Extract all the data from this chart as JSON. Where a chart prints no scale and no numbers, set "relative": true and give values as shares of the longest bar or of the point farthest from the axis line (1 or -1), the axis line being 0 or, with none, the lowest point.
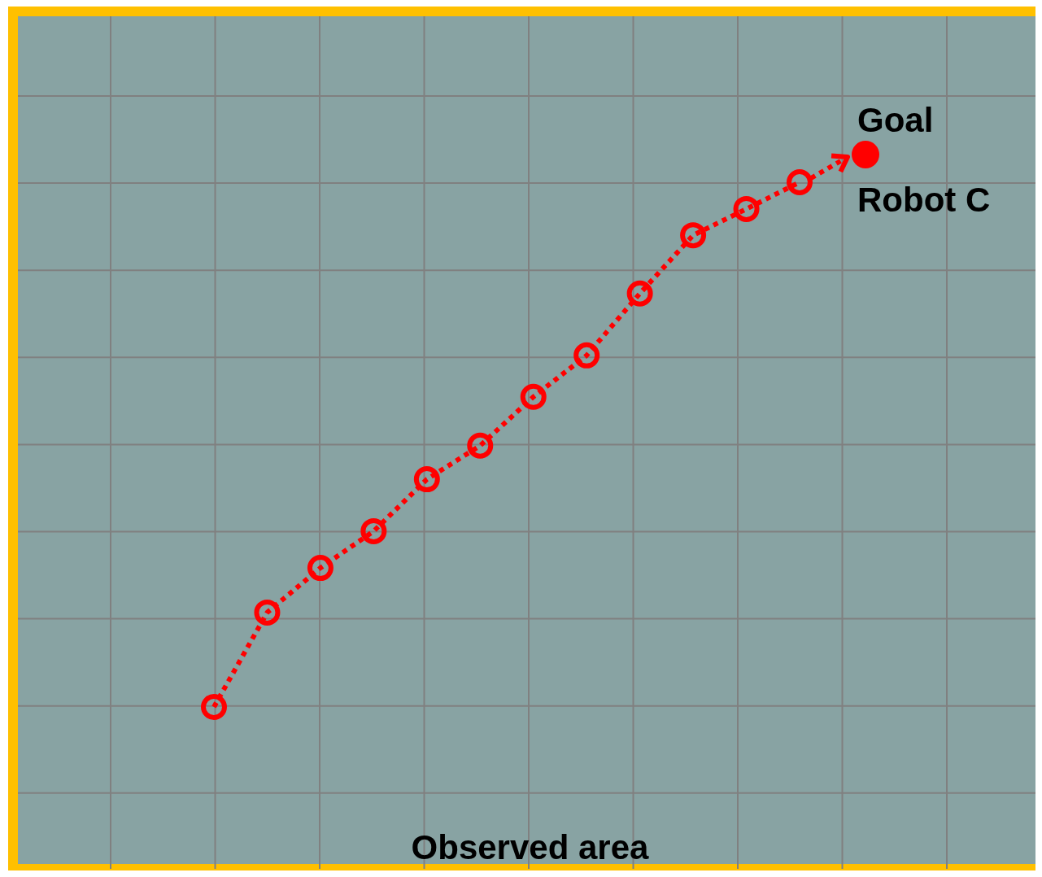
{
  "chart_data": {
    "type": "line",
    "relative": true,
    "grid": true,
    "line_style": "dotted",
    "marker": "circle",
    "annotations": [
      "Goal",
      "Robot C",
      "Observed area"
    ],
    "categories": [
      null,
      null,
      null,
      null,
      null,
      null,
      null,
      null,
      null,
      null,
      null,
      null
    ],
    "series": [
      {
        "color": "#ff0000",
        "values": [
          0,
          0.18,
          0.265,
          0.335,
          0.434,
          0.498,
          0.591,
          0.67,
          0.788,
          0.899,
          0.949,
          1
        ]
      }
    ]
  }
}
